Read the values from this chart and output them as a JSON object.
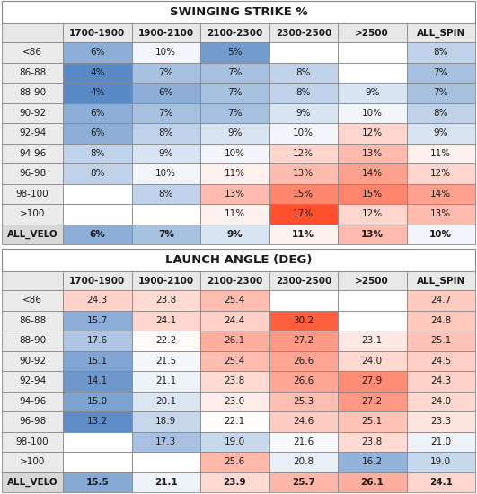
{
  "table1_title": "SWINGING STRIKE %",
  "table2_title": "LAUNCH ANGLE (DEG)",
  "col_headers": [
    "",
    "1700-1900",
    "1900-2100",
    "2100-2300",
    "2300-2500",
    ">2500",
    "ALL_SPIN"
  ],
  "row_headers": [
    "<86",
    "86-88",
    "88-90",
    "90-92",
    "92-94",
    "94-96",
    "96-98",
    "98-100",
    ">100",
    "ALL_VELO"
  ],
  "table1_data": [
    [
      "6%",
      "10%",
      "5%",
      "",
      "",
      "8%"
    ],
    [
      "4%",
      "7%",
      "7%",
      "8%",
      "",
      "7%"
    ],
    [
      "4%",
      "6%",
      "7%",
      "8%",
      "9%",
      "7%"
    ],
    [
      "6%",
      "7%",
      "7%",
      "9%",
      "10%",
      "8%"
    ],
    [
      "6%",
      "8%",
      "9%",
      "10%",
      "12%",
      "9%"
    ],
    [
      "8%",
      "9%",
      "10%",
      "12%",
      "13%",
      "11%"
    ],
    [
      "8%",
      "10%",
      "11%",
      "13%",
      "14%",
      "12%"
    ],
    [
      "",
      "8%",
      "13%",
      "15%",
      "15%",
      "14%"
    ],
    [
      "",
      "",
      "11%",
      "17%",
      "12%",
      "13%"
    ],
    [
      "6%",
      "7%",
      "9%",
      "11%",
      "13%",
      "10%"
    ]
  ],
  "table1_values": [
    [
      6,
      10,
      5,
      null,
      null,
      8
    ],
    [
      4,
      7,
      7,
      8,
      null,
      7
    ],
    [
      4,
      6,
      7,
      8,
      9,
      7
    ],
    [
      6,
      7,
      7,
      9,
      10,
      8
    ],
    [
      6,
      8,
      9,
      10,
      12,
      9
    ],
    [
      8,
      9,
      10,
      12,
      13,
      11
    ],
    [
      8,
      10,
      11,
      13,
      14,
      12
    ],
    [
      null,
      8,
      13,
      15,
      15,
      14
    ],
    [
      null,
      null,
      11,
      17,
      12,
      13
    ],
    [
      6,
      7,
      9,
      11,
      13,
      10
    ]
  ],
  "table2_data": [
    [
      "24.3",
      "23.8",
      "25.4",
      "",
      "",
      "24.7"
    ],
    [
      "15.7",
      "24.1",
      "24.4",
      "30.2",
      "",
      "24.8"
    ],
    [
      "17.6",
      "22.2",
      "26.1",
      "27.2",
      "23.1",
      "25.1"
    ],
    [
      "15.1",
      "21.5",
      "25.4",
      "26.6",
      "24.0",
      "24.5"
    ],
    [
      "14.1",
      "21.1",
      "23.8",
      "26.6",
      "27.9",
      "24.3"
    ],
    [
      "15.0",
      "20.1",
      "23.0",
      "25.3",
      "27.2",
      "24.0"
    ],
    [
      "13.2",
      "18.9",
      "22.1",
      "24.6",
      "25.1",
      "23.3"
    ],
    [
      "",
      "17.3",
      "19.0",
      "21.6",
      "23.8",
      "21.0"
    ],
    [
      "",
      "",
      "25.6",
      "20.8",
      "16.2",
      "19.0"
    ],
    [
      "15.5",
      "21.1",
      "23.9",
      "25.7",
      "26.1",
      "24.1"
    ]
  ],
  "table2_values": [
    [
      24.3,
      23.8,
      25.4,
      null,
      null,
      24.7
    ],
    [
      15.7,
      24.1,
      24.4,
      30.2,
      null,
      24.8
    ],
    [
      17.6,
      22.2,
      26.1,
      27.2,
      23.1,
      25.1
    ],
    [
      15.1,
      21.5,
      25.4,
      26.6,
      24.0,
      24.5
    ],
    [
      14.1,
      21.1,
      23.8,
      26.6,
      27.9,
      24.3
    ],
    [
      15.0,
      20.1,
      23.0,
      25.3,
      27.2,
      24.0
    ],
    [
      13.2,
      18.9,
      22.1,
      24.6,
      25.1,
      23.3
    ],
    [
      null,
      17.3,
      19.0,
      21.6,
      23.8,
      21.0
    ],
    [
      null,
      null,
      25.6,
      20.8,
      16.2,
      19.0
    ],
    [
      15.5,
      21.1,
      23.9,
      25.7,
      26.1,
      24.1
    ]
  ],
  "t1_vmin": 4,
  "t1_vmax": 17,
  "t2_vmin": 13,
  "t2_vmax": 31,
  "font_size": 7.5,
  "header_font_size": 7.5,
  "title_font_size": 9.5
}
